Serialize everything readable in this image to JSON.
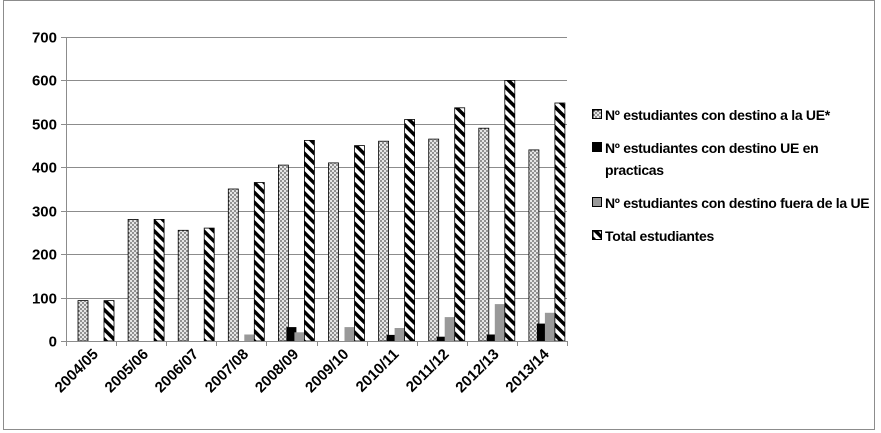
{
  "chart_data": {
    "type": "bar",
    "categories": [
      "2004/05",
      "2005/06",
      "2006/07",
      "2007/08",
      "2008/09",
      "2009/10",
      "2010/11",
      "2011/12",
      "2012/13",
      "2013/14"
    ],
    "series": [
      {
        "name": "Nº estudiantes con destino a la UE*",
        "pattern": "dotted",
        "values": [
          93,
          280,
          255,
          350,
          405,
          410,
          460,
          465,
          490,
          440
        ]
      },
      {
        "name": "Nº estudiantes con destino UE en practicas",
        "pattern": "solid-black",
        "values": [
          0,
          0,
          0,
          0,
          32,
          0,
          14,
          10,
          15,
          40
        ]
      },
      {
        "name": "Nº estudiantes con destino fuera de la UE",
        "pattern": "solid-gray",
        "values": [
          0,
          0,
          0,
          15,
          20,
          32,
          30,
          55,
          85,
          65
        ]
      },
      {
        "name": "Total estudiantes",
        "pattern": "diagonal-stripes",
        "values": [
          93,
          280,
          260,
          365,
          462,
          450,
          510,
          537,
          600,
          548
        ]
      }
    ],
    "ylim": [
      0,
      700
    ],
    "yticks": [
      0,
      100,
      200,
      300,
      400,
      500,
      600,
      700
    ],
    "grid": true,
    "legend_position": "right",
    "colors": {
      "dotted": "#bdbdbd",
      "solid-black": "#000000",
      "solid-gray": "#999999",
      "stripes": "#000000",
      "grid": "#8c8c8c"
    }
  }
}
